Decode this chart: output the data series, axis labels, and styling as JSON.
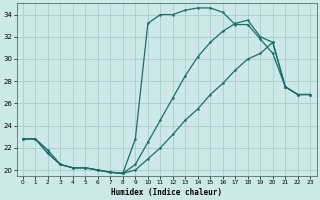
{
  "xlabel": "Humidex (Indice chaleur)",
  "bg_color": "#cce8e8",
  "grid_color": "#aacccc",
  "line_color": "#1a6e6a",
  "xlim": [
    -0.5,
    23.5
  ],
  "ylim": [
    19.5,
    35.0
  ],
  "xticks": [
    0,
    1,
    2,
    3,
    4,
    5,
    6,
    7,
    8,
    9,
    10,
    11,
    12,
    13,
    14,
    15,
    16,
    17,
    18,
    19,
    20,
    21,
    22,
    23
  ],
  "yticks": [
    20,
    22,
    24,
    26,
    28,
    30,
    32,
    34
  ],
  "line1_x": [
    0,
    1,
    2,
    3,
    4,
    5,
    6,
    7,
    8,
    9,
    10,
    11,
    12,
    13,
    14,
    15,
    16,
    17,
    18,
    19,
    20,
    21,
    22,
    23
  ],
  "line1_y": [
    22.8,
    22.8,
    21.8,
    20.5,
    20.2,
    20.2,
    20.0,
    19.8,
    19.7,
    22.8,
    33.2,
    34.0,
    34.0,
    34.4,
    34.6,
    34.6,
    34.2,
    33.1,
    33.1,
    31.8,
    30.5,
    27.5,
    26.8,
    26.8
  ],
  "line2_x": [
    0,
    1,
    2,
    3,
    4,
    5,
    6,
    7,
    8,
    9,
    10,
    11,
    12,
    13,
    14,
    15,
    16,
    17,
    18,
    19,
    20,
    21,
    22,
    23
  ],
  "line2_y": [
    22.8,
    22.8,
    21.5,
    20.5,
    20.2,
    20.2,
    20.0,
    19.8,
    19.7,
    20.5,
    22.5,
    24.5,
    26.5,
    28.5,
    30.2,
    31.5,
    32.5,
    33.2,
    33.5,
    32.0,
    31.5,
    27.5,
    26.8,
    26.8
  ],
  "line3_x": [
    0,
    1,
    2,
    3,
    4,
    5,
    6,
    7,
    8,
    9,
    10,
    11,
    12,
    13,
    14,
    15,
    16,
    17,
    18,
    19,
    20,
    21,
    22,
    23
  ],
  "line3_y": [
    22.8,
    22.8,
    21.5,
    20.5,
    20.2,
    20.2,
    20.0,
    19.8,
    19.7,
    20.0,
    21.0,
    22.0,
    23.2,
    24.5,
    25.5,
    26.8,
    27.8,
    29.0,
    30.0,
    30.5,
    31.5,
    27.5,
    26.8,
    26.8
  ]
}
